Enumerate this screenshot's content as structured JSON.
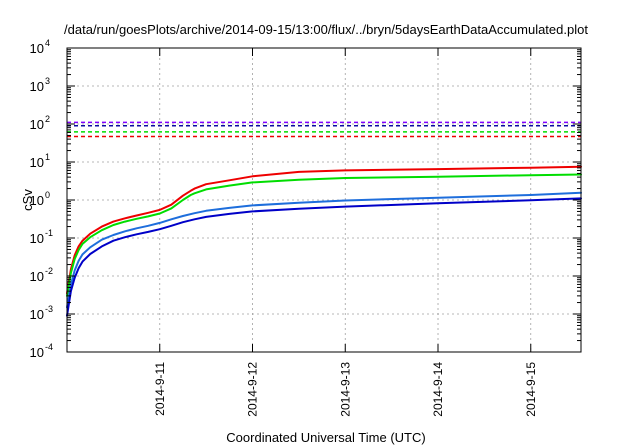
{
  "chart_data": {
    "type": "line",
    "title": "/data/run/goesPlots/archive/2014-09-15/13:00/flux/../bryn/5daysEarthDataAccumulated.plot",
    "xlabel": "Coordinated Universal Time (UTC)",
    "ylabel": "cSv",
    "x_scale": "time",
    "y_scale": "log",
    "xlim": [
      "2014-09-10 00:00",
      "2014-09-15 13:00"
    ],
    "ylim": [
      0.0001,
      10000
    ],
    "grid": true,
    "legend": "none",
    "y_ticks": [
      {
        "value": 0.0001,
        "base": "10",
        "exp": "-4"
      },
      {
        "value": 0.001,
        "base": "10",
        "exp": "-3"
      },
      {
        "value": 0.01,
        "base": "10",
        "exp": "-2"
      },
      {
        "value": 0.1,
        "base": "10",
        "exp": "-1"
      },
      {
        "value": 1,
        "base": "10",
        "exp": "0"
      },
      {
        "value": 10,
        "base": "10",
        "exp": "1"
      },
      {
        "value": 100,
        "base": "10",
        "exp": "2"
      },
      {
        "value": 1000,
        "base": "10",
        "exp": "3"
      },
      {
        "value": 10000,
        "base": "10",
        "exp": "4"
      }
    ],
    "x_ticks": [
      {
        "value": "2014-09-11 00:00",
        "label": "2014-9-11"
      },
      {
        "value": "2014-09-12 00:00",
        "label": "2014-9-12"
      },
      {
        "value": "2014-09-13 00:00",
        "label": "2014-9-13"
      },
      {
        "value": "2014-09-14 00:00",
        "label": "2014-9-14"
      },
      {
        "value": "2014-09-15 00:00",
        "label": "2014-9-15"
      }
    ],
    "thresholds": [
      {
        "color": "#8000ff",
        "y": 110
      },
      {
        "color": "#0a0aa0",
        "y": 90
      },
      {
        "color": "#00dd00",
        "y": 62
      },
      {
        "color": "#ee0000",
        "y": 47
      }
    ],
    "series": [
      {
        "color": "#ee0000",
        "x": [
          "2014-09-10 00:00",
          "2014-09-10 01:00",
          "2014-09-10 02:00",
          "2014-09-10 03:00",
          "2014-09-10 04:00",
          "2014-09-10 06:00",
          "2014-09-10 09:00",
          "2014-09-10 12:00",
          "2014-09-10 15:00",
          "2014-09-10 18:00",
          "2014-09-10 21:00",
          "2014-09-11 00:00",
          "2014-09-11 03:00",
          "2014-09-11 06:00",
          "2014-09-11 08:00",
          "2014-09-11 09:00",
          "2014-09-11 12:00",
          "2014-09-11 18:00",
          "2014-09-12 00:00",
          "2014-09-12 12:00",
          "2014-09-13 00:00",
          "2014-09-14 00:00",
          "2014-09-15 00:00",
          "2014-09-15 13:00"
        ],
        "y": [
          0.0035,
          0.015,
          0.035,
          0.06,
          0.085,
          0.13,
          0.2,
          0.27,
          0.33,
          0.39,
          0.46,
          0.55,
          0.75,
          1.3,
          1.75,
          2.0,
          2.6,
          3.3,
          4.2,
          5.5,
          6.0,
          6.5,
          7.1,
          7.5
        ]
      },
      {
        "color": "#00dd00",
        "x": [
          "2014-09-10 00:00",
          "2014-09-10 01:00",
          "2014-09-10 02:00",
          "2014-09-10 03:00",
          "2014-09-10 04:00",
          "2014-09-10 06:00",
          "2014-09-10 09:00",
          "2014-09-10 12:00",
          "2014-09-10 15:00",
          "2014-09-10 18:00",
          "2014-09-10 21:00",
          "2014-09-11 00:00",
          "2014-09-11 03:00",
          "2014-09-11 06:00",
          "2014-09-11 08:00",
          "2014-09-11 09:00",
          "2014-09-11 12:00",
          "2014-09-11 18:00",
          "2014-09-12 00:00",
          "2014-09-12 12:00",
          "2014-09-13 00:00",
          "2014-09-14 00:00",
          "2014-09-15 00:00",
          "2014-09-15 13:00"
        ],
        "y": [
          0.003,
          0.012,
          0.028,
          0.048,
          0.07,
          0.105,
          0.16,
          0.22,
          0.27,
          0.32,
          0.37,
          0.44,
          0.6,
          1.0,
          1.35,
          1.5,
          1.9,
          2.4,
          2.9,
          3.4,
          3.8,
          4.1,
          4.5,
          4.7
        ]
      },
      {
        "color": "#1e6edc",
        "x": [
          "2014-09-10 00:00",
          "2014-09-10 01:00",
          "2014-09-10 02:00",
          "2014-09-10 03:00",
          "2014-09-10 04:00",
          "2014-09-10 06:00",
          "2014-09-10 09:00",
          "2014-09-10 12:00",
          "2014-09-10 15:00",
          "2014-09-10 18:00",
          "2014-09-10 21:00",
          "2014-09-11 00:00",
          "2014-09-11 03:00",
          "2014-09-11 06:00",
          "2014-09-11 09:00",
          "2014-09-11 12:00",
          "2014-09-11 18:00",
          "2014-09-12 00:00",
          "2014-09-12 12:00",
          "2014-09-13 00:00",
          "2014-09-14 00:00",
          "2014-09-15 00:00",
          "2014-09-15 13:00"
        ],
        "y": [
          0.0015,
          0.006,
          0.014,
          0.025,
          0.037,
          0.057,
          0.09,
          0.12,
          0.15,
          0.18,
          0.21,
          0.25,
          0.31,
          0.38,
          0.45,
          0.52,
          0.62,
          0.72,
          0.85,
          0.97,
          1.15,
          1.35,
          1.55
        ]
      },
      {
        "color": "#0000c8",
        "x": [
          "2014-09-10 00:00",
          "2014-09-10 01:00",
          "2014-09-10 02:00",
          "2014-09-10 03:00",
          "2014-09-10 04:00",
          "2014-09-10 06:00",
          "2014-09-10 09:00",
          "2014-09-10 12:00",
          "2014-09-10 15:00",
          "2014-09-10 18:00",
          "2014-09-10 21:00",
          "2014-09-11 00:00",
          "2014-09-11 03:00",
          "2014-09-11 06:00",
          "2014-09-11 09:00",
          "2014-09-11 12:00",
          "2014-09-11 18:00",
          "2014-09-12 00:00",
          "2014-09-12 12:00",
          "2014-09-13 00:00",
          "2014-09-14 00:00",
          "2014-09-15 00:00",
          "2014-09-15 13:00"
        ],
        "y": [
          0.0009,
          0.004,
          0.009,
          0.016,
          0.024,
          0.038,
          0.06,
          0.085,
          0.105,
          0.125,
          0.145,
          0.17,
          0.21,
          0.26,
          0.31,
          0.36,
          0.43,
          0.5,
          0.59,
          0.67,
          0.82,
          0.98,
          1.1
        ]
      }
    ]
  }
}
